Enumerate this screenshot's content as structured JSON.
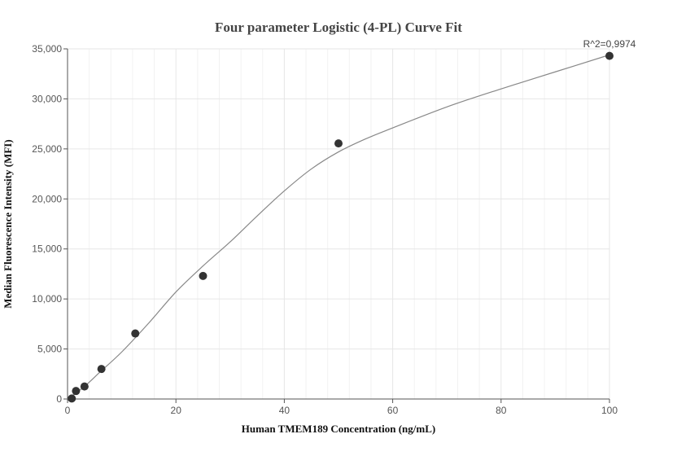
{
  "chart_data": {
    "type": "scatter",
    "title": "Four parameter Logistic (4-PL) Curve Fit",
    "xlabel": "Human TMEM189 Concentration (ng/mL)",
    "ylabel": "Median Fluorescence Intensity (MFI)",
    "xlim": [
      0,
      100
    ],
    "ylim": [
      0,
      35000
    ],
    "x_ticks": [
      0,
      20,
      40,
      60,
      80,
      100
    ],
    "x_tick_labels": [
      "0",
      "20",
      "40",
      "60",
      "80",
      "100"
    ],
    "y_ticks": [
      0,
      5000,
      10000,
      15000,
      20000,
      25000,
      30000,
      35000
    ],
    "y_tick_labels": [
      "0",
      "5,000",
      "10,000",
      "15,000",
      "20,000",
      "25,000",
      "30,000",
      "35,000"
    ],
    "grid": true,
    "series": [
      {
        "type": "scatter",
        "x": [
          0.78,
          1.56,
          3.13,
          6.25,
          12.5,
          25,
          50,
          100
        ],
        "y": [
          50,
          800,
          1250,
          3000,
          6550,
          12300,
          25550,
          34300
        ]
      },
      {
        "type": "line",
        "x": [
          0,
          3,
          6,
          10,
          15,
          20,
          25,
          30,
          35,
          40,
          45,
          50,
          55,
          60,
          70,
          80,
          90,
          100
        ],
        "y": [
          0,
          1200,
          2700,
          4700,
          7600,
          10700,
          13300,
          15700,
          18300,
          20800,
          23000,
          24700,
          26000,
          27100,
          29200,
          31000,
          32700,
          34400
        ]
      }
    ],
    "annotation": "R^2=0,9974",
    "colors": {
      "points": "#333333",
      "curve": "#888888",
      "grid": "#e6e6e6",
      "axis": "#555555"
    }
  }
}
